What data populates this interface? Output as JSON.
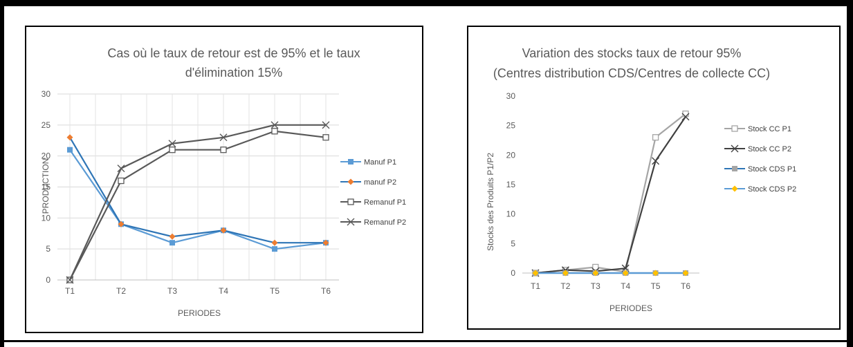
{
  "chart_data": [
    {
      "type": "line",
      "title_lines": [
        "Cas où le taux de retour est de 95% et le taux",
        "d'élimination  15%"
      ],
      "xlabel": "PERIODES",
      "ylabel": "PRODUCTION",
      "categories": [
        "T1",
        "T2",
        "T3",
        "T4",
        "T5",
        "T6"
      ],
      "ylim": [
        0,
        30
      ],
      "yticks": [
        "0",
        "5",
        "10",
        "15",
        "20",
        "25",
        "30"
      ],
      "grid": true,
      "legend_position": "right",
      "series": [
        {
          "name": "Manuf P1",
          "values": [
            21,
            9,
            6,
            8,
            5,
            6
          ],
          "color": "#5B9BD5",
          "marker": "square-filled"
        },
        {
          "name": "manuf P2",
          "values": [
            23,
            9,
            7,
            8,
            6,
            6
          ],
          "color": "#2E75B6",
          "marker": "diamond-orange",
          "marker_color": "#ED7D31"
        },
        {
          "name": "Remanuf P1",
          "values": [
            0,
            16,
            21,
            21,
            24,
            23
          ],
          "color": "#595959",
          "marker": "square-open"
        },
        {
          "name": "Remanuf P2",
          "values": [
            0,
            18,
            22,
            23,
            25,
            25
          ],
          "color": "#595959",
          "marker": "x"
        }
      ]
    },
    {
      "type": "line",
      "title_lines": [
        "Variation des stocks  taux de retour 95%",
        "(Centres distribution CDS/Centres de collecte CC)"
      ],
      "xlabel": "PERIODES",
      "ylabel": "Stocks des Produits P1/P2",
      "categories": [
        "T1",
        "T2",
        "T3",
        "T4",
        "T5",
        "T6"
      ],
      "ylim": [
        0,
        30
      ],
      "yticks": [
        "0",
        "5",
        "10",
        "15",
        "20",
        "25",
        "30"
      ],
      "grid": false,
      "legend_position": "right",
      "series": [
        {
          "name": "Stock CC P1",
          "values": [
            0,
            0.5,
            1,
            0.2,
            23,
            27
          ],
          "color": "#A5A5A5",
          "marker": "square-open"
        },
        {
          "name": "Stock CC P2",
          "values": [
            0,
            0.5,
            0.3,
            0.8,
            19,
            26.5
          ],
          "color": "#404040",
          "marker": "x"
        },
        {
          "name": "Stock CDS P1",
          "values": [
            0,
            0,
            0,
            0,
            0,
            0
          ],
          "color": "#2E75B6",
          "marker": "square-filled",
          "marker_color": "#A5A5A5"
        },
        {
          "name": "Stock CDS P2",
          "values": [
            0,
            0,
            0,
            0,
            0,
            0
          ],
          "color": "#5B9BD5",
          "marker": "diamond-orange",
          "marker_color": "#FFC000"
        }
      ]
    }
  ]
}
